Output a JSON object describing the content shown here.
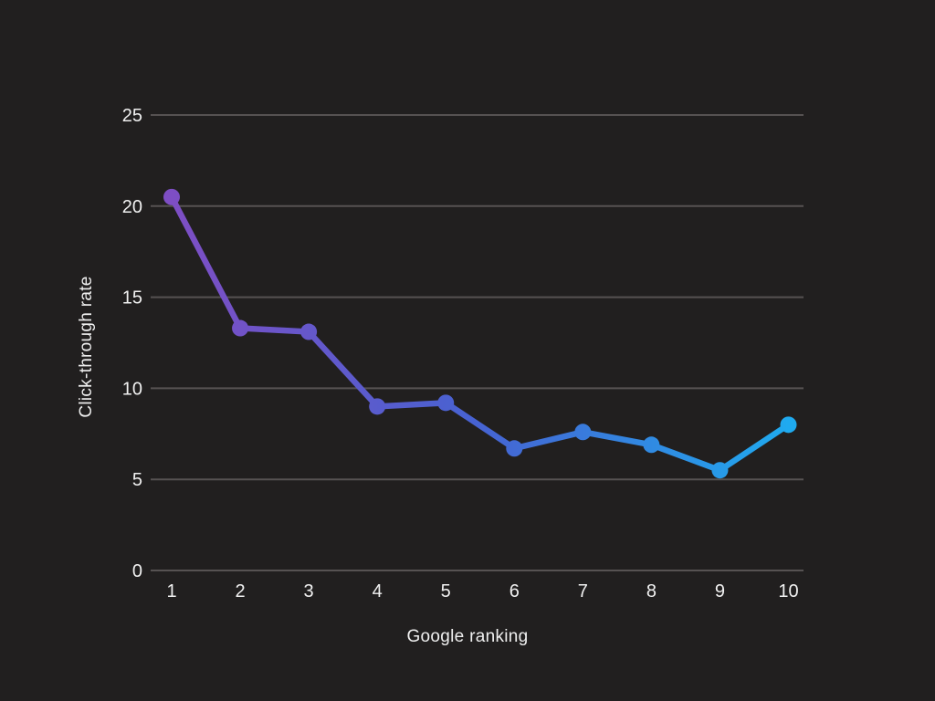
{
  "chart_data": {
    "type": "line",
    "title": "",
    "xlabel": "Google ranking",
    "ylabel": "Click-through rate",
    "x": [
      1,
      2,
      3,
      4,
      5,
      6,
      7,
      8,
      9,
      10
    ],
    "series": [
      {
        "name": "Click-through rate",
        "values": [
          20.5,
          13.3,
          13.1,
          9.0,
          9.2,
          6.7,
          7.6,
          6.9,
          5.5,
          8.0
        ]
      }
    ],
    "ylim": [
      0,
      25
    ],
    "yticks": [
      0,
      5,
      10,
      15,
      20,
      25
    ],
    "grid": "horizontal",
    "legend_position": "none",
    "marker": "circle"
  },
  "colors": {
    "background": "#211f1f",
    "gridline": "#565252",
    "axis_line": "#565252",
    "tick_text": "#f1f1f1",
    "axis_title_text": "#efefef",
    "line_gradient_start": "#7e4ec4",
    "line_gradient_mid": "#4663d2",
    "line_gradient_end": "#1faaef"
  }
}
